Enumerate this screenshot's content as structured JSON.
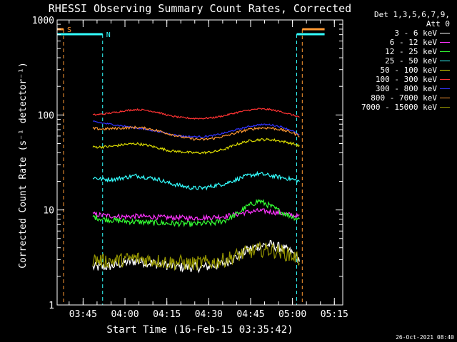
{
  "chart_data": {
    "type": "line",
    "title": "RHESSI Observing Summary Count Rates, Corrected",
    "xlabel": "Start Time (16-Feb-15 03:35:42)",
    "ylabel": "Corrected Count Rate (s⁻¹ detector⁻¹)",
    "ylog": true,
    "ylim": [
      1,
      1000
    ],
    "xlim": [
      "03:35:42",
      "05:18:00"
    ],
    "x_ticks": [
      "03:45",
      "04:00",
      "04:15",
      "04:30",
      "04:45",
      "05:00",
      "05:15"
    ],
    "y_ticks": [
      "1",
      "10",
      "100",
      "1000"
    ],
    "legend_header": [
      "Det 1,3,5,6,7,9,",
      "Att 0"
    ],
    "data_start": "03:48:30",
    "data_end": "05:02:30",
    "x": [
      "03:48:30",
      "03:52:00",
      "03:56:00",
      "04:00:00",
      "04:04:00",
      "04:08:00",
      "04:12:00",
      "04:16:00",
      "04:20:00",
      "04:24:00",
      "04:28:00",
      "04:32:00",
      "04:36:00",
      "04:40:00",
      "04:44:00",
      "04:48:00",
      "04:52:00",
      "04:56:00",
      "05:00:00",
      "05:02:30"
    ],
    "series": [
      {
        "name": "3 - 6 keV",
        "color": "#ffffff",
        "values": [
          2.5,
          2.5,
          2.6,
          2.8,
          2.9,
          2.8,
          2.7,
          2.6,
          2.5,
          2.5,
          2.5,
          2.6,
          2.8,
          3.2,
          3.8,
          4.2,
          4.3,
          4.0,
          3.5,
          3.0
        ]
      },
      {
        "name": "6 - 12 keV",
        "color": "#ff33ff",
        "values": [
          9.0,
          8.8,
          8.6,
          8.5,
          8.6,
          8.5,
          8.4,
          8.3,
          8.3,
          8.2,
          8.3,
          8.4,
          8.6,
          9.0,
          9.5,
          9.8,
          9.6,
          9.2,
          8.8,
          8.5
        ]
      },
      {
        "name": "12 - 25 keV",
        "color": "#33ff33",
        "values": [
          8.5,
          8.0,
          7.8,
          7.6,
          7.5,
          7.4,
          7.3,
          7.2,
          7.2,
          7.1,
          7.2,
          7.3,
          7.8,
          9.0,
          11.0,
          12.5,
          11.0,
          9.5,
          8.5,
          8.0
        ]
      },
      {
        "name": "25 - 50 keV",
        "color": "#33ffff",
        "values": [
          22,
          21,
          21,
          22,
          23,
          22,
          21,
          19,
          18,
          17,
          17,
          18,
          19,
          21,
          23,
          24,
          23,
          22,
          21,
          20
        ]
      },
      {
        "name": "50 - 100 keV",
        "color": "#dddd00",
        "values": [
          46,
          46,
          47,
          49,
          50,
          48,
          45,
          42,
          41,
          40,
          40,
          41,
          44,
          49,
          53,
          55,
          55,
          53,
          50,
          47
        ]
      },
      {
        "name": "100 - 300 keV",
        "color": "#ff3333",
        "values": [
          100,
          102,
          106,
          111,
          114,
          112,
          106,
          98,
          94,
          92,
          92,
          94,
          99,
          106,
          112,
          116,
          114,
          108,
          100,
          95
        ]
      },
      {
        "name": "300 - 800 keV",
        "color": "#3333ff",
        "values": [
          85,
          82,
          79,
          76,
          73,
          70,
          67,
          63,
          60,
          59,
          59,
          61,
          65,
          70,
          75,
          79,
          79,
          75,
          68,
          61
        ]
      },
      {
        "name": "800 - 7000 keV",
        "color": "#ff9933",
        "values": [
          72,
          71,
          72,
          73,
          74,
          72,
          68,
          63,
          59,
          56,
          55,
          57,
          60,
          65,
          70,
          73,
          73,
          70,
          65,
          60
        ]
      },
      {
        "name": "7000 - 15000 keV",
        "color": "#999900",
        "values": [
          3.0,
          2.9,
          2.9,
          3.0,
          3.1,
          3.0,
          2.9,
          2.8,
          2.8,
          2.7,
          2.8,
          2.8,
          3.0,
          3.3,
          3.6,
          3.8,
          3.8,
          3.6,
          3.3,
          3.0
        ]
      }
    ],
    "markers": [
      {
        "label": "S",
        "color": "#ff9933",
        "flag_start": "03:35:42",
        "flag_end": "03:38:00",
        "line_time": "03:38:00"
      },
      {
        "label": "N",
        "color": "#33ffff",
        "flag_start": "03:35:42",
        "flag_end": "03:52:00",
        "line_time": "03:52:00"
      },
      {
        "label": "",
        "color": "#33ffff",
        "flag_start": "05:01:30",
        "flag_end": "05:11:30",
        "line_time": "05:01:30"
      },
      {
        "label": "",
        "color": "#ff9933",
        "flag_start": "05:03:30",
        "flag_end": "05:11:30",
        "line_time": "05:03:30"
      }
    ]
  },
  "footer": {
    "timestamp": "26-Oct-2021 08:40"
  }
}
